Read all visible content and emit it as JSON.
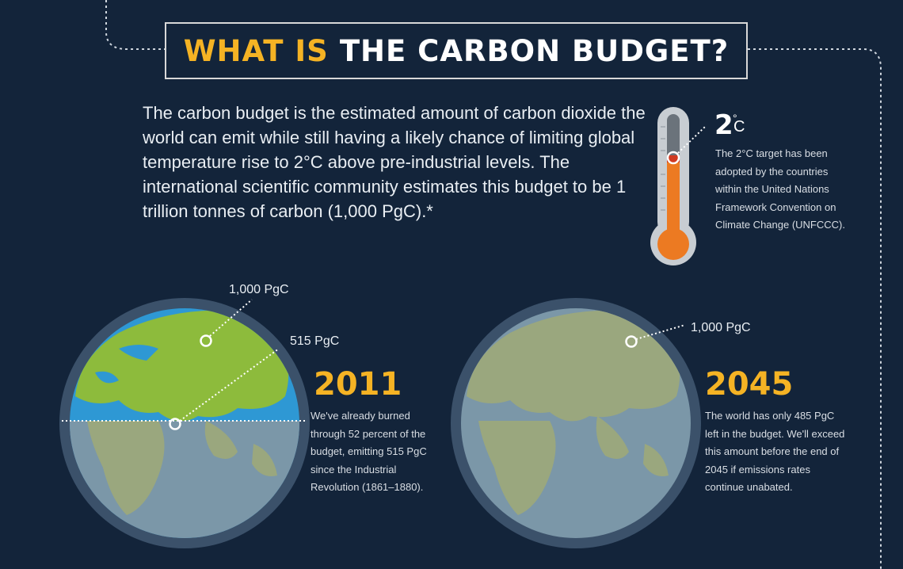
{
  "header": {
    "title_accent": "WHAT IS",
    "title_main": "THE CARBON BUDGET?"
  },
  "intro": "The carbon budget is the estimated amount of carbon dioxide the world can emit while still having a likely chance of limiting global temperature rise to 2°C above pre-industrial levels. The international scientific community estimates this budget to be 1 trillion tonnes of carbon (1,000 PgC).*",
  "target": {
    "degrees": "2",
    "degree_symbol": "°",
    "unit": "C",
    "text": "The 2°C target has been adopted by the countries within the United Nations Framework Convention on Climate Change (UNFCCC)."
  },
  "globe_2011": {
    "year": "2011",
    "label_total": "1,000 PgC",
    "label_used": "515 PgC",
    "used_fraction": 0.515,
    "text": "We've already burned through 52 percent of the budget, emitting 515 PgC since the Industrial Revolution (1861–1880)."
  },
  "globe_2045": {
    "year": "2045",
    "label_total": "1,000 PgC",
    "text": "The world has only 485 PgC left in the budget. We'll exceed this amount before the end of 2045 if emissions rates continue unabated."
  },
  "colors": {
    "background": "#13243a",
    "accent": "#f5b324",
    "land_green": "#8dbb3c",
    "ocean_blue": "#2e98d4",
    "land_muted": "#9aa77e",
    "ocean_muted": "#7b97a8",
    "thermometer_fill": "#ec7a22"
  }
}
